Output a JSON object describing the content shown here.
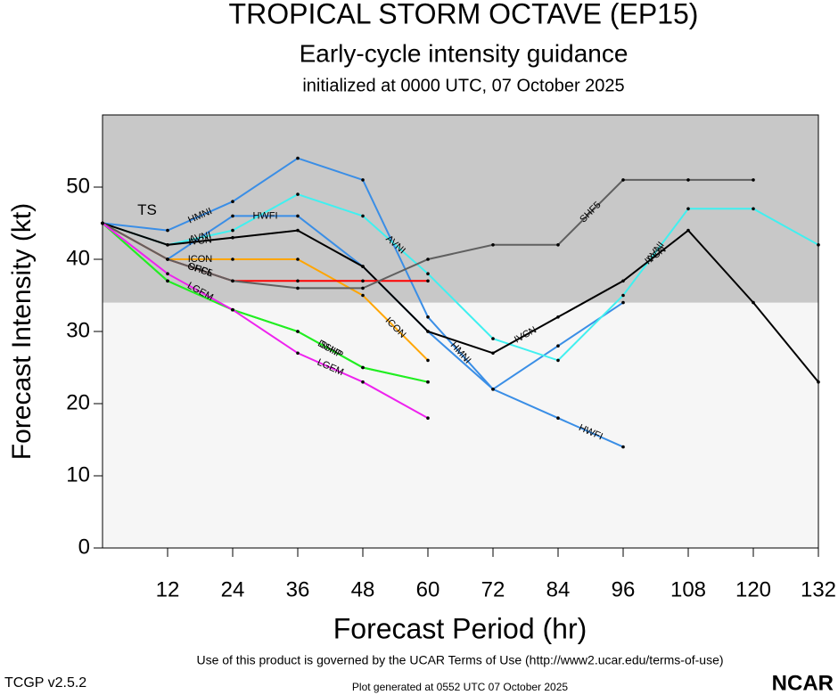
{
  "chart_data": {
    "type": "line",
    "title": "TROPICAL STORM OCTAVE (EP15)",
    "subtitle": "Early-cycle intensity guidance",
    "subtitle2": "initialized at 0000 UTC, 07 October 2025",
    "x_label": "Forecast Period (hr)",
    "y_label": "Forecast Intensity (kt)",
    "band": {
      "label": "TS",
      "min": 34
    },
    "x": [
      0,
      12,
      24,
      36,
      48,
      60,
      72,
      84,
      96,
      108,
      120,
      132
    ],
    "xlim": [
      0,
      132
    ],
    "xticks": [
      12,
      24,
      36,
      48,
      60,
      72,
      84,
      96,
      108,
      120,
      132
    ],
    "ylim": [
      0,
      60
    ],
    "yticks": [
      0,
      10,
      20,
      30,
      40,
      50
    ],
    "series": [
      {
        "name": "HWFI",
        "color": "#3a8ee6",
        "values": [
          45,
          40,
          46,
          46,
          39,
          30,
          22,
          18,
          14,
          null,
          null,
          null
        ]
      },
      {
        "name": "HMNI",
        "color": "#3a8ee6",
        "values": [
          45,
          44,
          48,
          54,
          51,
          32,
          22,
          28,
          34,
          null,
          null,
          null
        ]
      },
      {
        "name": "AVNI",
        "color": "#40f0f0",
        "values": [
          45,
          42,
          44,
          49,
          46,
          38,
          29,
          26,
          35,
          47,
          47,
          42
        ]
      },
      {
        "name": "IVCN",
        "color": "#000000",
        "values": [
          45,
          42,
          43,
          44,
          39,
          30,
          27,
          32,
          37,
          44,
          34,
          23
        ]
      },
      {
        "name": "ICON",
        "color": "#ffa500",
        "values": [
          45,
          40,
          40,
          40,
          35,
          26,
          null,
          null,
          null,
          null,
          null,
          null
        ]
      },
      {
        "name": "OFCL",
        "color": "#ff0000",
        "values": [
          45,
          40,
          37,
          37,
          37,
          37,
          null,
          null,
          null,
          null,
          null,
          null
        ]
      },
      {
        "name": "SHF5",
        "color": "#606060",
        "values": [
          45,
          40,
          37,
          36,
          36,
          40,
          42,
          42,
          51,
          51,
          51,
          null
        ]
      },
      {
        "name": "DSHP",
        "color": "#22ee22",
        "values": [
          45,
          37,
          33,
          30,
          25,
          23,
          null,
          null,
          null,
          null,
          null,
          null
        ]
      },
      {
        "name": "SHIP",
        "color": "#22ee22",
        "values": [
          45,
          37,
          33,
          30,
          25,
          23,
          null,
          null,
          null,
          null,
          null,
          null
        ]
      },
      {
        "name": "LGEM",
        "color": "#ee22ee",
        "values": [
          45,
          38,
          33,
          27,
          23,
          18,
          null,
          null,
          null,
          null,
          null,
          null
        ]
      }
    ],
    "footer": "Use of this product is governed by the UCAR Terms of Use (http://www2.ucar.edu/terms-of-use)",
    "version": "TCGP v2.5.2",
    "generated": "Plot generated at 0552 UTC   07 October 2025",
    "logo": "NCAR"
  }
}
